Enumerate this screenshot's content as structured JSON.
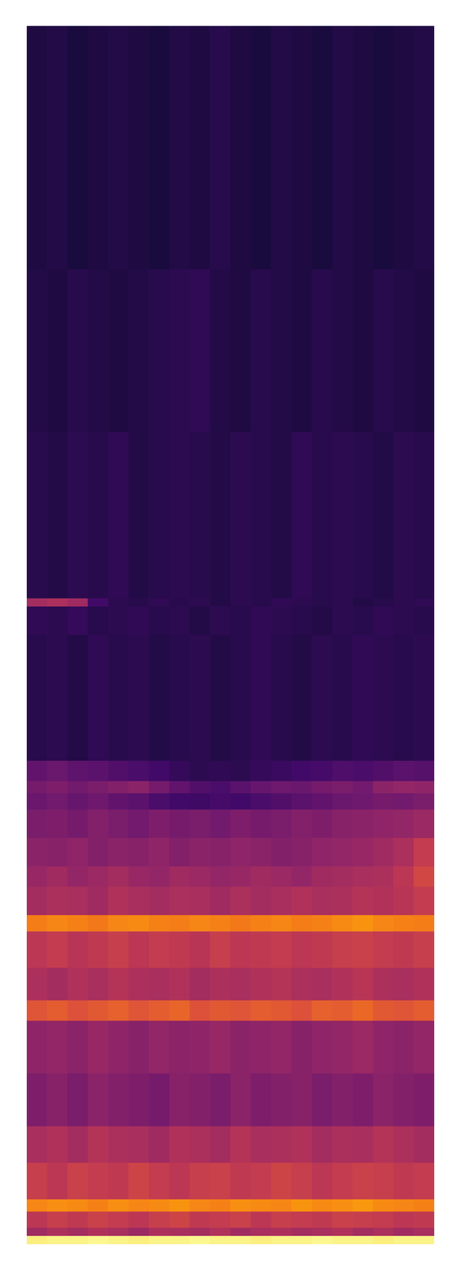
{
  "chart_data": {
    "type": "heatmap",
    "tick_labels": false,
    "grid": false,
    "xlim": [
      0,
      20
    ],
    "ylim": [
      0,
      300
    ],
    "zlim": [
      0,
      10
    ],
    "x_edges": [
      0,
      1,
      2,
      3,
      4,
      5,
      6,
      7,
      8,
      9,
      10,
      11,
      12,
      13,
      14,
      15,
      16,
      17,
      18,
      19,
      20
    ],
    "y_edges": [
      0,
      2,
      4,
      8,
      11,
      20,
      29,
      42,
      55,
      60,
      68,
      77,
      81,
      88,
      93,
      100,
      107,
      111,
      114,
      119,
      150,
      157,
      159,
      200,
      240,
      300
    ],
    "cells": [
      [
        9.6,
        9.7,
        9.7,
        9.8,
        9.7,
        9.6,
        9.7,
        9.7,
        9.8,
        9.7,
        9.7,
        9.6,
        9.7,
        9.7,
        9.8,
        9.7,
        9.7,
        9.6,
        9.7,
        9.7
      ],
      [
        4.3,
        4.6,
        4.4,
        4.7,
        4.5,
        4.2,
        4.6,
        4.5,
        4.4,
        4.7,
        4.3,
        4.5,
        4.6,
        4.4,
        4.5,
        4.7,
        4.4,
        4.6,
        4.3,
        4.5
      ],
      [
        5.0,
        5.3,
        5.1,
        5.4,
        5.2,
        5.0,
        5.3,
        5.5,
        5.1,
        5.2,
        5.4,
        5.0,
        5.3,
        5.2,
        5.1,
        5.4,
        5.3,
        5.2,
        5.0,
        5.1
      ],
      [
        7.3,
        7.5,
        7.4,
        7.2,
        7.5,
        7.3,
        7.4,
        7.6,
        7.3,
        7.2,
        7.5,
        7.4,
        7.3,
        7.6,
        7.4,
        7.5,
        7.7,
        7.4,
        7.3,
        7.2
      ],
      [
        5.3,
        5.0,
        5.4,
        5.2,
        5.1,
        5.5,
        5.2,
        5.0,
        5.3,
        5.4,
        5.1,
        5.2,
        5.5,
        5.3,
        5.0,
        5.2,
        5.4,
        5.3,
        5.1,
        5.2
      ],
      [
        4.5,
        4.7,
        4.4,
        4.8,
        4.6,
        4.5,
        4.3,
        4.7,
        4.6,
        4.4,
        4.8,
        4.5,
        4.6,
        4.7,
        4.4,
        4.6,
        4.5,
        4.8,
        4.6,
        4.4
      ],
      [
        3.5,
        3.7,
        3.4,
        3.8,
        3.6,
        3.5,
        3.3,
        3.7,
        3.6,
        3.4,
        3.8,
        3.5,
        3.6,
        3.7,
        3.4,
        3.6,
        3.5,
        3.8,
        3.6,
        3.5
      ],
      [
        3.9,
        4.0,
        3.8,
        4.1,
        3.9,
        3.7,
        4.0,
        3.8,
        3.9,
        4.1,
        3.8,
        3.9,
        4.0,
        3.7,
        3.9,
        4.0,
        4.2,
        3.9,
        3.8,
        4.0
      ],
      [
        6.1,
        6.3,
        6.0,
        6.2,
        6.4,
        6.1,
        6.3,
        6.5,
        6.0,
        6.2,
        6.1,
        6.3,
        6.2,
        6.0,
        6.4,
        6.3,
        6.6,
        6.2,
        6.1,
        6.3
      ],
      [
        4.6,
        4.4,
        4.7,
        4.5,
        4.8,
        4.6,
        4.5,
        4.7,
        4.4,
        4.6,
        4.5,
        4.7,
        4.8,
        4.6,
        4.5,
        4.7,
        4.9,
        4.6,
        4.5,
        4.7
      ],
      [
        5.0,
        5.2,
        4.9,
        5.1,
        5.3,
        5.0,
        5.2,
        5.1,
        4.9,
        5.3,
        5.0,
        5.1,
        5.2,
        5.0,
        5.1,
        5.3,
        5.4,
        5.2,
        5.1,
        5.3
      ],
      [
        7.1,
        7.3,
        7.2,
        7.0,
        7.3,
        7.4,
        7.2,
        7.1,
        7.3,
        7.2,
        7.0,
        7.2,
        7.3,
        7.1,
        7.2,
        7.4,
        7.6,
        7.3,
        7.2,
        7.1
      ],
      [
        4.4,
        4.6,
        4.5,
        4.3,
        4.7,
        4.5,
        4.4,
        4.6,
        4.5,
        4.3,
        4.6,
        4.4,
        4.5,
        4.7,
        4.5,
        4.6,
        4.8,
        4.7,
        4.9,
        5.2
      ],
      [
        4.1,
        4.3,
        4.0,
        4.2,
        4.4,
        4.1,
        4.0,
        4.3,
        4.2,
        4.0,
        4.1,
        4.3,
        4.2,
        4.0,
        4.3,
        4.4,
        4.5,
        4.6,
        5.0,
        5.6
      ],
      [
        3.8,
        3.7,
        3.9,
        3.6,
        3.8,
        3.7,
        3.9,
        3.6,
        3.8,
        3.7,
        3.9,
        3.8,
        3.6,
        3.7,
        3.9,
        4.0,
        4.1,
        4.3,
        4.6,
        5.2
      ],
      [
        3.4,
        3.5,
        3.3,
        3.6,
        3.4,
        3.2,
        3.5,
        3.3,
        3.4,
        3.2,
        3.5,
        3.3,
        3.4,
        3.6,
        3.5,
        3.7,
        3.8,
        3.9,
        4.0,
        4.2
      ],
      [
        3.0,
        3.2,
        2.9,
        3.1,
        2.8,
        2.6,
        2.2,
        2.0,
        1.9,
        2.1,
        2.0,
        2.2,
        2.4,
        2.6,
        2.8,
        3.0,
        3.1,
        3.3,
        3.2,
        3.4
      ],
      [
        3.3,
        3.5,
        3.2,
        3.4,
        3.6,
        3.8,
        3.3,
        2.8,
        2.4,
        2.2,
        2.6,
        2.9,
        3.1,
        3.0,
        3.3,
        3.4,
        3.2,
        3.8,
        4.0,
        3.9
      ],
      [
        2.8,
        3.0,
        2.7,
        2.6,
        2.4,
        2.2,
        2.0,
        1.7,
        1.5,
        1.6,
        1.5,
        1.7,
        1.8,
        2.0,
        2.1,
        2.3,
        2.2,
        2.4,
        2.6,
        2.5
      ],
      [
        1.4,
        1.5,
        1.3,
        1.6,
        1.4,
        1.5,
        1.3,
        1.4,
        1.5,
        1.3,
        1.4,
        1.6,
        1.4,
        1.3,
        1.5,
        1.4,
        1.6,
        1.5,
        1.4,
        1.5
      ],
      [
        1.6,
        1.5,
        1.7,
        1.4,
        1.5,
        1.6,
        1.4,
        1.5,
        1.3,
        1.5,
        1.4,
        1.6,
        1.5,
        1.4,
        1.3,
        1.5,
        1.4,
        1.6,
        1.5,
        1.4
      ],
      [
        4.4,
        4.6,
        4.3,
        2.0,
        1.5,
        1.4,
        1.6,
        1.4,
        1.5,
        1.3,
        1.5,
        1.4,
        1.6,
        1.5,
        1.4,
        1.5,
        1.3,
        1.4,
        1.5,
        1.6
      ],
      [
        1.4,
        1.3,
        1.5,
        1.4,
        1.6,
        1.3,
        1.4,
        1.5,
        1.4,
        1.3,
        1.5,
        1.4,
        1.3,
        1.6,
        1.4,
        1.5,
        1.4,
        1.3,
        1.5,
        1.4
      ],
      [
        1.3,
        1.2,
        1.4,
        1.3,
        1.2,
        1.3,
        1.4,
        1.5,
        1.6,
        1.3,
        1.2,
        1.4,
        1.3,
        1.2,
        1.4,
        1.3,
        1.2,
        1.4,
        1.3,
        1.2
      ],
      [
        1.2,
        1.3,
        1.1,
        1.2,
        1.3,
        1.2,
        1.1,
        1.3,
        1.2,
        1.4,
        1.2,
        1.1,
        1.3,
        1.2,
        1.1,
        1.3,
        1.2,
        1.1,
        1.2,
        1.3
      ]
    ]
  }
}
